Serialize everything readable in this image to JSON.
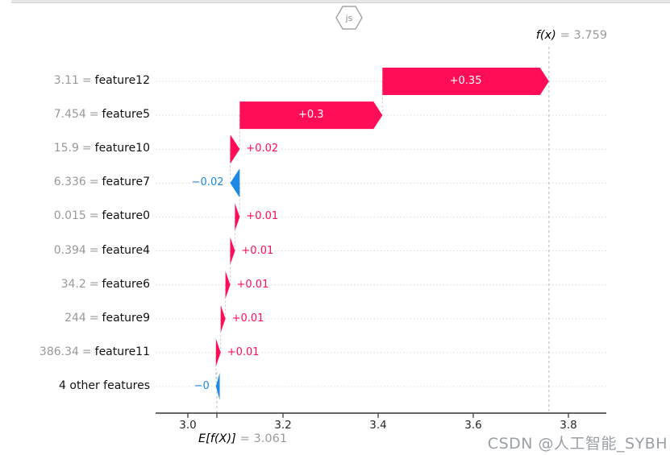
{
  "badge": {
    "label": "js"
  },
  "watermark": {
    "text": "CSDN @人工智能_SYBH"
  },
  "chart_data": {
    "type": "waterfall",
    "description": "SHAP waterfall plot",
    "eq": "=",
    "fx": {
      "label": "f(x)",
      "eq_value": "= 3.759",
      "value": 3.759
    },
    "ef": {
      "label": "E[f(X)]",
      "eq_value": "= 3.061",
      "value": 3.061
    },
    "x_ticks": [
      {
        "label": "3.0",
        "value": 3.0
      },
      {
        "label": "3.2",
        "value": 3.2
      },
      {
        "label": "3.4",
        "value": 3.4
      },
      {
        "label": "3.6",
        "value": 3.6
      },
      {
        "label": "3.8",
        "value": 3.8
      }
    ],
    "xlim": [
      2.93,
      3.88
    ],
    "rows": [
      {
        "value_label": "3.11",
        "name": "feature12",
        "contribution": 0.35,
        "contribution_label": "+0.35"
      },
      {
        "value_label": "7.454",
        "name": "feature5",
        "contribution": 0.3,
        "contribution_label": "+0.3"
      },
      {
        "value_label": "15.9",
        "name": "feature10",
        "contribution": 0.02,
        "contribution_label": "+0.02"
      },
      {
        "value_label": "6.336",
        "name": "feature7",
        "contribution": -0.02,
        "contribution_label": "−0.02"
      },
      {
        "value_label": "0.015",
        "name": "feature0",
        "contribution": 0.01,
        "contribution_label": "+0.01"
      },
      {
        "value_label": "0.394",
        "name": "feature4",
        "contribution": 0.01,
        "contribution_label": "+0.01"
      },
      {
        "value_label": "34.2",
        "name": "feature6",
        "contribution": 0.01,
        "contribution_label": "+0.01"
      },
      {
        "value_label": "244",
        "name": "feature9",
        "contribution": 0.01,
        "contribution_label": "+0.01"
      },
      {
        "value_label": "386.34",
        "name": "feature11",
        "contribution": 0.01,
        "contribution_label": "+0.01"
      },
      {
        "value_label": "",
        "name": "4 other features",
        "contribution": -0.008,
        "contribution_label": "−0"
      }
    ],
    "colors": {
      "positive": "#ff0d57",
      "negative": "#1e88e5"
    }
  }
}
